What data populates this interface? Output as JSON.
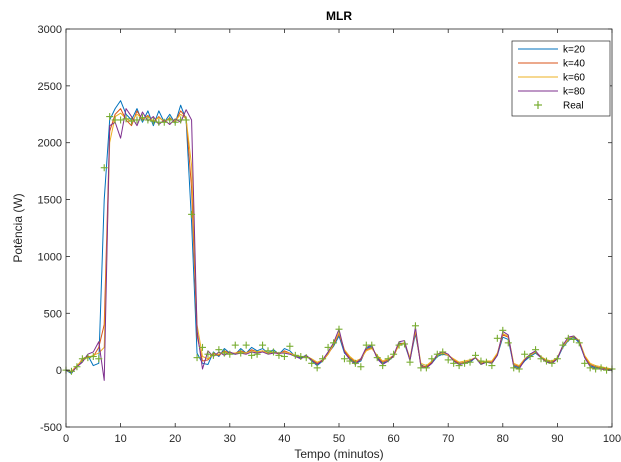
{
  "chart_data": {
    "type": "line",
    "title": "MLR",
    "xlabel": "Tempo (minutos)",
    "ylabel": "Potência (W)",
    "xlim": [
      0,
      100
    ],
    "ylim": [
      -500,
      3000
    ],
    "xticks": [
      "0",
      "10",
      "20",
      "30",
      "40",
      "50",
      "60",
      "70",
      "80",
      "90",
      "100"
    ],
    "yticks": [
      "-500",
      "0",
      "500",
      "1000",
      "1500",
      "2000",
      "2500",
      "3000"
    ],
    "grid": false,
    "legend_position": "top-right",
    "x": [
      0,
      1,
      2,
      3,
      4,
      5,
      6,
      7,
      8,
      9,
      10,
      11,
      12,
      13,
      14,
      15,
      16,
      17,
      18,
      19,
      20,
      21,
      22,
      23,
      24,
      25,
      26,
      27,
      28,
      29,
      30,
      31,
      32,
      33,
      34,
      35,
      36,
      37,
      38,
      39,
      40,
      41,
      42,
      43,
      44,
      45,
      46,
      47,
      48,
      49,
      50,
      51,
      52,
      53,
      54,
      55,
      56,
      57,
      58,
      59,
      60,
      61,
      62,
      63,
      64,
      65,
      66,
      67,
      68,
      69,
      70,
      71,
      72,
      73,
      74,
      75,
      76,
      77,
      78,
      79,
      80,
      81,
      82,
      83,
      84,
      85,
      86,
      87,
      88,
      89,
      90,
      91,
      92,
      93,
      94,
      95,
      96,
      97,
      98,
      99,
      100
    ],
    "series": [
      {
        "name": "k=20",
        "color": "#0072BD",
        "marker": "line",
        "values": [
          0,
          -30,
          40,
          80,
          130,
          40,
          60,
          1500,
          2200,
          2300,
          2370,
          2250,
          2200,
          2300,
          2180,
          2280,
          2150,
          2280,
          2180,
          2250,
          2170,
          2330,
          2200,
          1300,
          150,
          60,
          50,
          160,
          120,
          190,
          150,
          140,
          190,
          150,
          200,
          170,
          190,
          150,
          180,
          140,
          190,
          170,
          120,
          110,
          130,
          80,
          40,
          80,
          150,
          210,
          300,
          150,
          100,
          60,
          80,
          190,
          210,
          110,
          60,
          80,
          120,
          240,
          230,
          90,
          320,
          50,
          20,
          60,
          120,
          140,
          130,
          90,
          50,
          60,
          70,
          110,
          50,
          70,
          60,
          130,
          290,
          270,
          40,
          20,
          80,
          120,
          150,
          110,
          80,
          60,
          100,
          200,
          260,
          290,
          240,
          110,
          40,
          20,
          20,
          10,
          10
        ]
      },
      {
        "name": "k=40",
        "color": "#D95319",
        "marker": "line",
        "values": [
          0,
          -20,
          30,
          100,
          120,
          120,
          200,
          400,
          2100,
          2250,
          2300,
          2200,
          2150,
          2280,
          2200,
          2240,
          2180,
          2230,
          2180,
          2220,
          2180,
          2280,
          2220,
          1600,
          300,
          80,
          90,
          150,
          130,
          170,
          150,
          150,
          170,
          150,
          180,
          160,
          170,
          150,
          160,
          140,
          170,
          150,
          130,
          120,
          120,
          90,
          60,
          80,
          140,
          220,
          320,
          170,
          110,
          70,
          90,
          180,
          200,
          120,
          70,
          90,
          120,
          230,
          240,
          100,
          340,
          40,
          30,
          70,
          130,
          150,
          130,
          90,
          60,
          70,
          80,
          110,
          60,
          70,
          70,
          140,
          310,
          290,
          50,
          30,
          90,
          130,
          160,
          110,
          80,
          70,
          110,
          210,
          270,
          300,
          250,
          120,
          50,
          30,
          20,
          10,
          10
        ]
      },
      {
        "name": "k=60",
        "color": "#EDB120",
        "marker": "line",
        "values": [
          0,
          -10,
          40,
          90,
          110,
          130,
          150,
          200,
          2000,
          2230,
          2260,
          2210,
          2190,
          2250,
          2210,
          2230,
          2190,
          2220,
          2190,
          2210,
          2190,
          2250,
          2210,
          1800,
          400,
          120,
          100,
          140,
          140,
          160,
          150,
          150,
          160,
          150,
          170,
          160,
          170,
          150,
          160,
          150,
          160,
          150,
          130,
          120,
          120,
          100,
          70,
          90,
          140,
          230,
          330,
          180,
          120,
          80,
          100,
          170,
          190,
          130,
          80,
          100,
          130,
          220,
          240,
          110,
          350,
          60,
          40,
          80,
          130,
          150,
          130,
          100,
          70,
          80,
          90,
          110,
          70,
          80,
          80,
          150,
          320,
          300,
          60,
          40,
          100,
          130,
          160,
          120,
          90,
          80,
          110,
          210,
          270,
          300,
          260,
          130,
          60,
          40,
          30,
          20,
          10
        ]
      },
      {
        "name": "k=80",
        "color": "#7E2F8E",
        "marker": "line",
        "values": [
          0,
          -20,
          30,
          70,
          140,
          160,
          250,
          -90,
          2150,
          2180,
          2040,
          2300,
          2230,
          2150,
          2270,
          2190,
          2230,
          2160,
          2200,
          2160,
          2210,
          2180,
          2290,
          2200,
          350,
          10,
          170,
          120,
          160,
          130,
          160,
          140,
          150,
          140,
          160,
          150,
          160,
          140,
          150,
          150,
          150,
          140,
          120,
          100,
          130,
          90,
          50,
          90,
          160,
          240,
          360,
          160,
          90,
          50,
          100,
          200,
          220,
          100,
          50,
          80,
          130,
          250,
          260,
          80,
          380,
          30,
          20,
          60,
          140,
          160,
          140,
          80,
          50,
          60,
          80,
          110,
          50,
          70,
          60,
          130,
          340,
          310,
          30,
          10,
          90,
          140,
          170,
          110,
          70,
          60,
          100,
          220,
          290,
          300,
          250,
          110,
          30,
          10,
          10,
          0,
          0
        ]
      },
      {
        "name": "Real",
        "color": "#77AC30",
        "marker": "plus",
        "values": [
          0,
          -10,
          30,
          100,
          110,
          120,
          100,
          1780,
          2230,
          2200,
          2200,
          2210,
          2190,
          2200,
          2220,
          2200,
          2190,
          2180,
          2180,
          2200,
          2180,
          2200,
          2200,
          1370,
          110,
          200,
          140,
          130,
          180,
          150,
          140,
          220,
          150,
          220,
          130,
          140,
          220,
          170,
          160,
          130,
          120,
          210,
          130,
          120,
          110,
          60,
          20,
          100,
          200,
          240,
          360,
          100,
          80,
          60,
          30,
          220,
          220,
          110,
          40,
          100,
          140,
          220,
          230,
          70,
          390,
          20,
          20,
          100,
          140,
          160,
          90,
          60,
          40,
          60,
          70,
          130,
          80,
          70,
          40,
          280,
          350,
          240,
          20,
          10,
          140,
          120,
          180,
          100,
          80,
          60,
          100,
          220,
          280,
          270,
          240,
          60,
          20,
          10,
          20,
          0,
          10
        ]
      }
    ]
  }
}
